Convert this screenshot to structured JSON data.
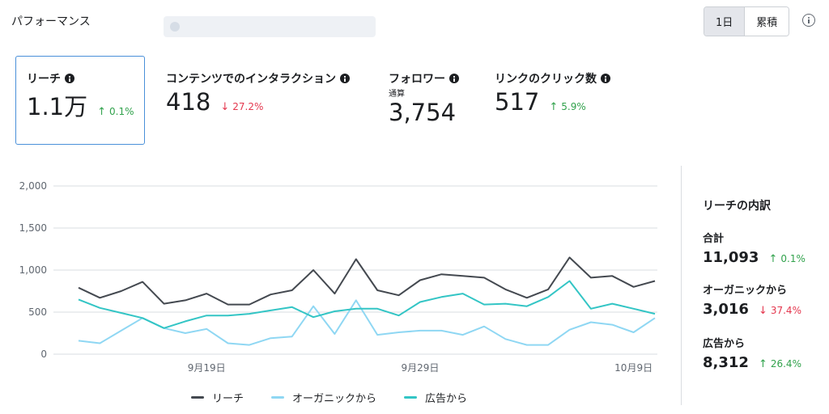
{
  "header": {
    "title": "パフォーマンス",
    "toggle": {
      "daily_label": "1日",
      "cumulative_label": "累積"
    }
  },
  "metrics": [
    {
      "label": "リーチ",
      "value": "1.1万",
      "delta": "0.1%",
      "direction": "up"
    },
    {
      "label": "コンテンツでのインタラクション",
      "value": "418",
      "delta": "27.2%",
      "direction": "down"
    },
    {
      "label": "フォロワー",
      "sublabel": "通算",
      "value": "3,754"
    },
    {
      "label": "リンクのクリック数",
      "value": "517",
      "delta": "5.9%",
      "direction": "up"
    }
  ],
  "breakdown": {
    "title": "リーチの内訳",
    "items": [
      {
        "label": "合計",
        "value": "11,093",
        "delta": "0.1%",
        "direction": "up"
      },
      {
        "label": "オーガニックから",
        "value": "3,016",
        "delta": "37.4%",
        "direction": "down"
      },
      {
        "label": "広告から",
        "value": "8,312",
        "delta": "26.4%",
        "direction": "up"
      }
    ]
  },
  "colors": {
    "up": "#31a24c",
    "down": "#e4374e",
    "selected_border": "#4a90d9"
  },
  "chart_data": {
    "type": "line",
    "x_tick_labels": [
      "9月19日",
      "9月29日",
      "10月9日"
    ],
    "x_tick_indices": [
      6,
      16,
      26
    ],
    "ylim": [
      0,
      2000
    ],
    "y_ticks": [
      0,
      500,
      1000,
      1500,
      2000
    ],
    "y_tick_labels": [
      "0",
      "500",
      "1,000",
      "1,500",
      "2,000"
    ],
    "grid": true,
    "legend_position": "bottom",
    "series": [
      {
        "name": "リーチ",
        "color": "#444950",
        "values": [
          790,
          670,
          750,
          860,
          600,
          640,
          720,
          590,
          590,
          710,
          760,
          1000,
          720,
          1130,
          760,
          700,
          880,
          950,
          930,
          910,
          770,
          670,
          770,
          1150,
          910,
          930,
          800,
          870
        ]
      },
      {
        "name": "オーガニックから",
        "color": "#8fd7f3",
        "values": [
          160,
          130,
          280,
          430,
          310,
          250,
          300,
          130,
          110,
          190,
          210,
          570,
          240,
          640,
          230,
          260,
          280,
          280,
          230,
          330,
          180,
          110,
          110,
          290,
          380,
          350,
          260,
          430
        ]
      },
      {
        "name": "広告から",
        "color": "#33c5c5",
        "values": [
          650,
          550,
          490,
          430,
          310,
          390,
          460,
          460,
          480,
          520,
          560,
          440,
          510,
          540,
          540,
          460,
          620,
          680,
          720,
          590,
          600,
          570,
          680,
          870,
          540,
          600,
          540,
          480
        ]
      }
    ]
  }
}
